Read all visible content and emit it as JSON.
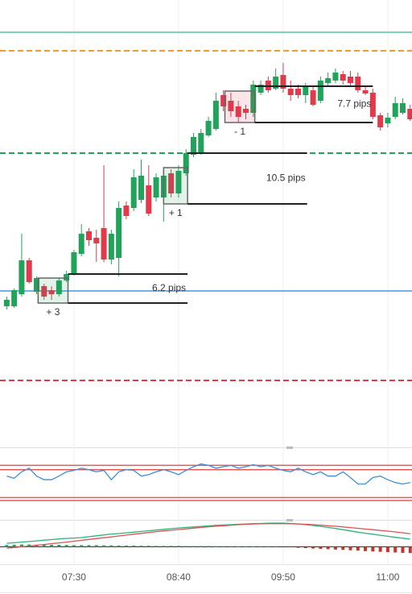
{
  "chart_data": [
    {
      "type": "candlestick",
      "x": [
        405,
        410,
        415,
        420,
        425,
        430,
        435,
        440,
        445,
        450,
        455,
        460,
        465,
        470,
        475,
        480,
        485,
        490,
        495,
        500,
        505,
        510,
        515,
        520,
        525,
        530,
        535,
        540,
        545,
        550,
        555,
        560,
        565,
        570,
        575,
        580,
        585,
        590,
        595,
        600,
        605,
        610,
        615,
        620,
        625,
        630,
        635,
        640,
        645,
        650,
        655,
        660,
        665,
        670,
        675
      ],
      "open": [
        175,
        175,
        190,
        232,
        193,
        200,
        195,
        190,
        207,
        215,
        240,
        268,
        260,
        272,
        233,
        235,
        300,
        297,
        307,
        325,
        310,
        310,
        340,
        315,
        340,
        363,
        365,
        387,
        395,
        437,
        430,
        423,
        420,
        415,
        440,
        455,
        445,
        462,
        445,
        445,
        437,
        443,
        430,
        452,
        455,
        463,
        460,
        460,
        443,
        440,
        412,
        402,
        410,
        415,
        420
      ],
      "high": [
        187,
        197,
        265,
        235,
        212,
        203,
        200,
        210,
        219,
        245,
        277,
        272,
        270,
        350,
        270,
        305,
        305,
        345,
        357,
        350,
        340,
        345,
        345,
        350,
        370,
        390,
        395,
        410,
        440,
        443,
        440,
        430,
        425,
        455,
        455,
        460,
        470,
        477,
        455,
        450,
        452,
        447,
        460,
        465,
        470,
        467,
        467,
        465,
        447,
        445,
        415,
        415,
        435,
        433,
        425
      ],
      "low": [
        171,
        173,
        187,
        203,
        190,
        183,
        183,
        187,
        205,
        213,
        237,
        250,
        230,
        230,
        227,
        212,
        283,
        293,
        303,
        287,
        305,
        280,
        310,
        310,
        337,
        360,
        363,
        385,
        393,
        417,
        410,
        403,
        407,
        410,
        437,
        440,
        443,
        440,
        430,
        433,
        427,
        423,
        427,
        447,
        452,
        450,
        447,
        440,
        437,
        407,
        393,
        397,
        407,
        413,
        405
      ],
      "close": [
        183,
        195,
        232,
        205,
        210,
        187,
        190,
        207,
        215,
        242,
        265,
        257,
        253,
        233,
        265,
        297,
        287,
        335,
        337,
        290,
        335,
        337,
        315,
        343,
        365,
        385,
        390,
        405,
        430,
        423,
        417,
        410,
        415,
        450,
        450,
        443,
        460,
        445,
        437,
        437,
        447,
        425,
        455,
        458,
        465,
        455,
        452,
        443,
        439,
        410,
        397,
        409,
        427,
        427,
        407
      ],
      "up_color": "#22a35a",
      "down_color": "#e2394b",
      "xlim": [
        400.5,
        676.2
      ],
      "xticks": [
        {
          "value": 450,
          "label": "07:30"
        },
        {
          "value": 520,
          "label": "08:40"
        },
        {
          "value": 590,
          "label": "09:50"
        },
        {
          "value": 660,
          "label": "11:00"
        }
      ],
      "ylim": [
        0,
        555
      ],
      "levels": [
        {
          "value": 515,
          "color": "#7fd1b9",
          "dashed": false
        },
        {
          "value": 492,
          "color": "#f39c2c",
          "dashed": true
        },
        {
          "value": 365,
          "color": "#22a35a",
          "dashed": true
        },
        {
          "value": 194,
          "color": "#6fb0f0",
          "dashed": false
        },
        {
          "value": 83,
          "color": "#e2394b",
          "dashed": true
        }
      ],
      "trades": [
        {
          "result": "+ 3",
          "pips": "6.2 pips",
          "color": "#22a35a",
          "time": [
            426,
            446,
            526
          ],
          "box": [
            179,
            210
          ],
          "lines": [
            179,
            215
          ]
        },
        {
          "result": "+ 1",
          "pips": "10.5 pips",
          "color": "#22a35a",
          "time": [
            510,
            526,
            606
          ],
          "box": [
            302,
            347
          ],
          "lines": [
            302,
            365
          ]
        },
        {
          "result": "- 1",
          "pips": "7.7 pips",
          "color": "#e2394b",
          "time": [
            551,
            571,
            650
          ],
          "box": [
            403,
            442
          ],
          "lines": [
            403,
            448
          ]
        }
      ]
    },
    {
      "type": "line",
      "ylim": [
        0,
        100
      ],
      "levels": [
        76,
        70,
        31,
        27
      ],
      "level_color": "#e05a5a",
      "series": [
        {
          "color": "#3f8fd8",
          "values": [
            61,
            58,
            67,
            72,
            61,
            56,
            56,
            61,
            67,
            69,
            72,
            70,
            67,
            69,
            56,
            67,
            70,
            69,
            61,
            63,
            67,
            70,
            67,
            63,
            69,
            74,
            78,
            76,
            72,
            74,
            76,
            72,
            74,
            77,
            74,
            76,
            72,
            69,
            67,
            72,
            67,
            63,
            67,
            61,
            61,
            67,
            59,
            50,
            50,
            59,
            61,
            56,
            52,
            50,
            52
          ]
        }
      ]
    },
    {
      "type": "combo",
      "ylim": [
        -10,
        15
      ],
      "series": [
        {
          "type": "bar",
          "color": "#22a35a",
          "negative_color": "#c0392b",
          "values": [
            1.0,
            1.2,
            1.3,
            1.3,
            1.2,
            1.2,
            1.1,
            1.1,
            1.0,
            0.9,
            0.9,
            0.9,
            0.9,
            0.8,
            0.8,
            0.7,
            0.7,
            0.7,
            0.6,
            0.6,
            0.5,
            0.5,
            0.5,
            0.5,
            0.4,
            0.4,
            0.4,
            0.4,
            0.3,
            0.3,
            0.3,
            0.2,
            0.2,
            0.2,
            0.1,
            0.1,
            0.1,
            0.0,
            -0.3,
            -0.6,
            -0.8,
            -1.0,
            -1.2,
            -1.4,
            -1.6,
            -1.8,
            -2.0,
            -2.2,
            -2.5,
            -2.7,
            -2.9,
            -3.1,
            -3.3,
            -3.5,
            -3.6
          ]
        },
        {
          "type": "line",
          "color": "#2bb37a",
          "values": [
            2.0,
            2.3,
            2.7,
            3.0,
            3.4,
            3.8,
            4.1,
            4.5,
            4.8,
            5.0,
            5.3,
            5.8,
            6.3,
            6.8,
            7.3,
            7.6,
            8.0,
            8.4,
            8.8,
            9.2,
            9.6,
            10.0,
            10.4,
            10.8,
            11.1,
            11.4,
            11.7,
            12.0,
            12.3,
            12.5,
            12.7,
            12.9,
            13.1,
            13.3,
            13.4,
            13.5,
            13.6,
            13.6,
            13.4,
            13.1,
            12.7,
            12.2,
            11.7,
            11.1,
            10.5,
            9.8,
            9.1,
            8.4,
            7.8,
            7.2,
            6.6,
            6.0,
            5.4,
            4.9,
            4.4
          ]
        },
        {
          "type": "line",
          "color": "#d9534f",
          "values": [
            -0.8,
            -0.4,
            0.0,
            0.4,
            0.9,
            1.3,
            1.8,
            2.2,
            2.7,
            3.2,
            3.7,
            4.2,
            4.7,
            5.2,
            5.7,
            6.2,
            6.7,
            7.2,
            7.7,
            8.2,
            8.7,
            9.1,
            9.5,
            9.9,
            10.3,
            10.7,
            11.1,
            11.5,
            11.8,
            12.1,
            12.4,
            12.7,
            12.9,
            13.1,
            13.2,
            13.3,
            13.3,
            13.3,
            13.2,
            13.1,
            12.9,
            12.7,
            12.4,
            12.1,
            11.8,
            11.4,
            11.0,
            10.6,
            10.2,
            9.8,
            9.4,
            9.0,
            8.5,
            8.0,
            7.5
          ]
        }
      ]
    }
  ]
}
